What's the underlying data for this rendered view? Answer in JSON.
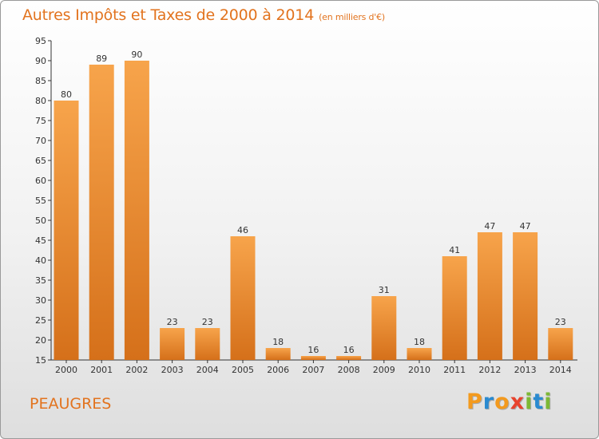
{
  "header": {
    "title": "Autres Impôts et Taxes de 2000 à 2014",
    "unit": "(en milliers d'€)"
  },
  "footer": {
    "commune": "PEAUGRES",
    "logo_letters": [
      "P",
      "r",
      "o",
      "x",
      "i",
      "t",
      "i"
    ],
    "logo_colors": [
      "#f39a1e",
      "#2a8ad0",
      "#f39a1e",
      "#e8432d",
      "#7db834",
      "#2a8ad0",
      "#7db834"
    ]
  },
  "colors": {
    "accent": "#e2731e",
    "bar_light": "#f7a44b",
    "bar_dark": "#d5701a"
  },
  "chart_data": {
    "type": "bar",
    "title": "Autres Impôts et Taxes de 2000 à 2014",
    "subtitle": "(en milliers d'€)",
    "xlabel": "",
    "ylabel": "",
    "categories": [
      "2000",
      "2001",
      "2002",
      "2003",
      "2004",
      "2005",
      "2006",
      "2007",
      "2008",
      "2009",
      "2010",
      "2011",
      "2012",
      "2013",
      "2014"
    ],
    "values": [
      80,
      89,
      90,
      23,
      23,
      46,
      18,
      16,
      16,
      31,
      18,
      41,
      47,
      47,
      23
    ],
    "ylim": [
      15,
      95
    ],
    "yticks": [
      15,
      20,
      25,
      30,
      35,
      40,
      45,
      50,
      55,
      60,
      65,
      70,
      75,
      80,
      85,
      90,
      95
    ],
    "grid": false,
    "data_labels": true
  }
}
